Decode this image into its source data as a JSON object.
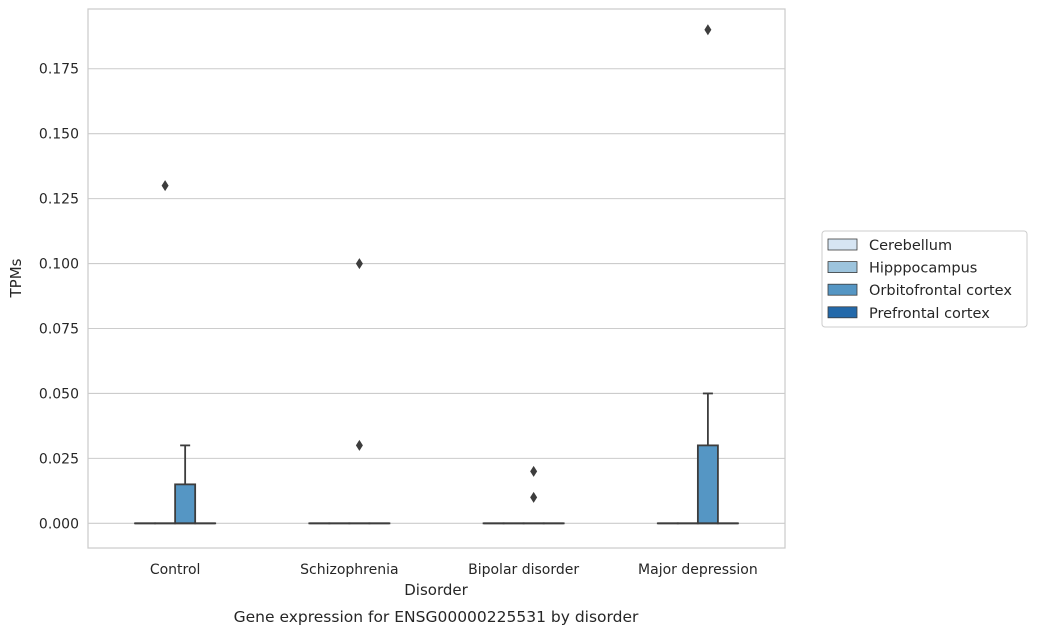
{
  "chart_data": {
    "type": "box",
    "title": "",
    "caption": "Gene expression for ENSG00000225531 by disorder",
    "xlabel": "Disorder",
    "ylabel": "TPMs",
    "ylim": [
      -0.0095,
      0.198
    ],
    "yticks": [
      0.0,
      0.025,
      0.05,
      0.075,
      0.1,
      0.125,
      0.15,
      0.175
    ],
    "ytick_labels": [
      "0.000",
      "0.025",
      "0.050",
      "0.075",
      "0.100",
      "0.125",
      "0.150",
      "0.175"
    ],
    "grid": "horizontal",
    "legend_placement": "right",
    "categories": [
      "Control",
      "Schizophrenia",
      "Bipolar disorder",
      "Major depression"
    ],
    "series": [
      {
        "name": "Cerebellum",
        "color": "#d6e5f3",
        "boxes": [
          {
            "q1": 0,
            "median": 0,
            "q3": 0,
            "whisker_low": 0,
            "whisker_high": 0,
            "outliers": []
          },
          {
            "q1": 0,
            "median": 0,
            "q3": 0,
            "whisker_low": 0,
            "whisker_high": 0,
            "outliers": []
          },
          {
            "q1": 0,
            "median": 0,
            "q3": 0,
            "whisker_low": 0,
            "whisker_high": 0,
            "outliers": []
          },
          {
            "q1": 0,
            "median": 0,
            "q3": 0,
            "whisker_low": 0,
            "whisker_high": 0,
            "outliers": []
          }
        ]
      },
      {
        "name": "Hipppocampus",
        "color": "#9dc4dd",
        "boxes": [
          {
            "q1": 0,
            "median": 0,
            "q3": 0,
            "whisker_low": 0,
            "whisker_high": 0,
            "outliers": [
              0.13
            ]
          },
          {
            "q1": 0,
            "median": 0,
            "q3": 0,
            "whisker_low": 0,
            "whisker_high": 0,
            "outliers": []
          },
          {
            "q1": 0,
            "median": 0,
            "q3": 0,
            "whisker_low": 0,
            "whisker_high": 0,
            "outliers": []
          },
          {
            "q1": 0,
            "median": 0,
            "q3": 0,
            "whisker_low": 0,
            "whisker_high": 0,
            "outliers": []
          }
        ]
      },
      {
        "name": "Orbitofrontal cortex",
        "color": "#5596c4",
        "boxes": [
          {
            "q1": 0,
            "median": 0,
            "q3": 0.015,
            "whisker_low": 0,
            "whisker_high": 0.03,
            "outliers": []
          },
          {
            "q1": 0,
            "median": 0,
            "q3": 0,
            "whisker_low": 0,
            "whisker_high": 0,
            "outliers": [
              0.1,
              0.03
            ]
          },
          {
            "q1": 0,
            "median": 0,
            "q3": 0,
            "whisker_low": 0,
            "whisker_high": 0,
            "outliers": [
              0.02,
              0.01
            ]
          },
          {
            "q1": 0,
            "median": 0,
            "q3": 0.03,
            "whisker_low": 0,
            "whisker_high": 0.05,
            "outliers": [
              0.19
            ]
          }
        ]
      },
      {
        "name": "Prefrontal cortex",
        "color": "#2369aa",
        "boxes": [
          {
            "q1": 0,
            "median": 0,
            "q3": 0,
            "whisker_low": 0,
            "whisker_high": 0,
            "outliers": []
          },
          {
            "q1": 0,
            "median": 0,
            "q3": 0,
            "whisker_low": 0,
            "whisker_high": 0,
            "outliers": []
          },
          {
            "q1": 0,
            "median": 0,
            "q3": 0,
            "whisker_low": 0,
            "whisker_high": 0,
            "outliers": []
          },
          {
            "q1": 0,
            "median": 0,
            "q3": 0,
            "whisker_low": 0,
            "whisker_high": 0,
            "outliers": []
          }
        ]
      }
    ]
  }
}
